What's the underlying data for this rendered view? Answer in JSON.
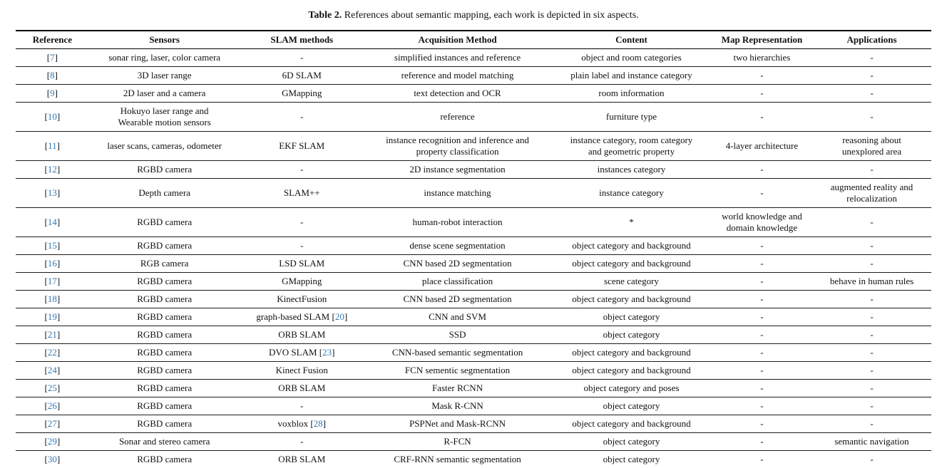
{
  "colors": {
    "citation_blue": "#3179b5",
    "text_black": "#111111",
    "rule_black": "#000000"
  },
  "caption": {
    "label": "Table 2.",
    "text": "References about semantic mapping, each work is depicted in six aspects."
  },
  "table": {
    "columns": [
      "Reference",
      "Sensors",
      "SLAM methods",
      "Acquisition Method",
      "Content",
      "Map Representation",
      "Applications"
    ],
    "column_keys": [
      "reference",
      "sensors",
      "slam-methods",
      "acquisition-method",
      "content",
      "map-representation",
      "applications"
    ],
    "rows": [
      [
        "[7]",
        "sonar ring, laser, color camera",
        "-",
        "simplified instances and reference",
        "object and room categories",
        "two hierarchies",
        "-"
      ],
      [
        "[8]",
        "3D laser range",
        "6D SLAM",
        "reference and model matching",
        "plain label and instance category",
        "-",
        "-"
      ],
      [
        "[9]",
        "2D laser and a camera",
        "GMapping",
        "text detection and OCR",
        "room information",
        "-",
        "-"
      ],
      [
        "[10]",
        "Hokuyo laser range and\nWearable motion sensors",
        "-",
        "reference",
        "furniture type",
        "-",
        "-"
      ],
      [
        "[11]",
        "laser scans, cameras, odometer",
        "EKF SLAM",
        "instance recognition and inference and\nproperty classification",
        "instance category, room category\nand geometric property",
        "4-layer architecture",
        "reasoning about\nunexplored area"
      ],
      [
        "[12]",
        "RGBD camera",
        "-",
        "2D instance segmentation",
        "instances category",
        "-",
        "-"
      ],
      [
        "[13]",
        "Depth camera",
        "SLAM++",
        "instance matching",
        "instance category",
        "-",
        "augmented reality and\nrelocalization"
      ],
      [
        "[14]",
        "RGBD camera",
        "-",
        "human-robot interaction",
        "*",
        "world knowledge and\ndomain knowledge",
        "-"
      ],
      [
        "[15]",
        "RGBD camera",
        "-",
        "dense scene segmentation",
        "object category and background",
        "-",
        "-"
      ],
      [
        "[16]",
        "RGB camera",
        "LSD SLAM",
        "CNN based 2D segmentation",
        "object category and background",
        "-",
        "-"
      ],
      [
        "[17]",
        "RGBD camera",
        "GMapping",
        "place classification",
        "scene category",
        "-",
        "behave in human rules"
      ],
      [
        "[18]",
        "RGBD camera",
        "KinectFusion",
        "CNN based 2D segmentation",
        "object category and background",
        "-",
        "-"
      ],
      [
        "[19]",
        "RGBD camera",
        "graph-based SLAM [20]",
        "CNN and SVM",
        "object category",
        "-",
        "-"
      ],
      [
        "[21]",
        "RGBD camera",
        "ORB SLAM",
        "SSD",
        "object category",
        "-",
        "-"
      ],
      [
        "[22]",
        "RGBD camera",
        "DVO SLAM [23]",
        "CNN-based semantic segmentation",
        "object category and background",
        "-",
        "-"
      ],
      [
        "[24]",
        "RGBD camera",
        "Kinect Fusion",
        "FCN sementic segmentation",
        "object category and background",
        "-",
        "-"
      ],
      [
        "[25]",
        "RGBD camera",
        "ORB SLAM",
        "Faster RCNN",
        "object category and poses",
        "-",
        "-"
      ],
      [
        "[26]",
        "RGBD camera",
        "-",
        "Mask R-CNN",
        "object category",
        "-",
        "-"
      ],
      [
        "[27]",
        "RGBD camera",
        "voxblox [28]",
        "PSPNet and Mask-RCNN",
        "object category and background",
        "-",
        "-"
      ],
      [
        "[29]",
        "Sonar and stereo camera",
        "-",
        "R-FCN",
        "object category",
        "-",
        "semantic navigation"
      ],
      [
        "[30]",
        "RGBD camera",
        "ORB SLAM",
        "CRF-RNN semantic segmentation",
        "object category",
        "-",
        "-"
      ]
    ]
  }
}
